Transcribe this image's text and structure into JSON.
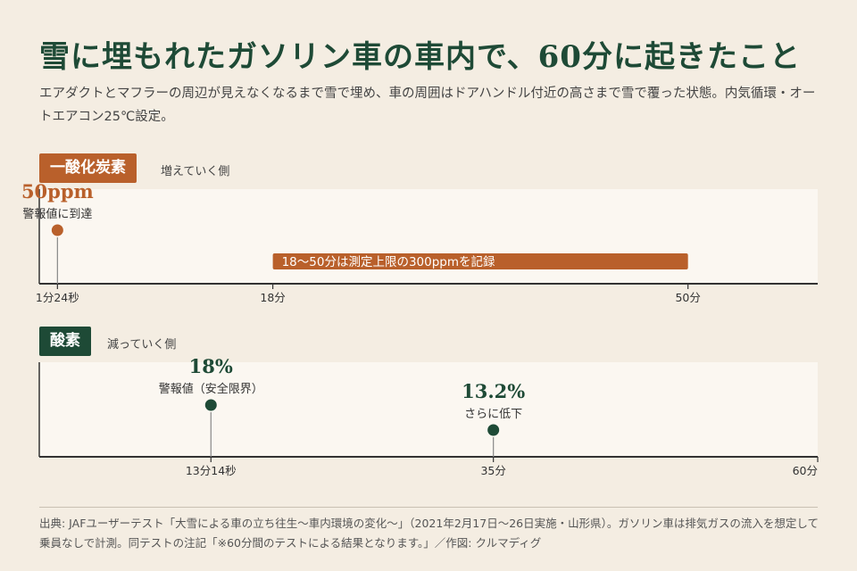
{
  "title": "雪に埋もれたガソリン車の車内で、60分に起きたこと",
  "subtitle": "エアダクトとマフラーの周辺が見えなくなるまで雪で埋め、車の周囲はドアハンドル付近の高さまで雪で覆った状態。内気循環・オートエアコン25℃設定。",
  "colors": {
    "co": "#b9602b",
    "o2": "#1e4a36",
    "band": "#fbf7f1",
    "background": "#f4ede2"
  },
  "chart_data": [
    {
      "type": "timeline",
      "badge": "一酸化炭素",
      "note": "増えていく側",
      "x_unit": "minutes",
      "xlim": [
        0,
        60
      ],
      "ticks": [
        {
          "x": 1.4,
          "label": "1分24秒"
        },
        {
          "x": 18,
          "label": "18分"
        },
        {
          "x": 50,
          "label": "50分"
        }
      ],
      "events": [
        {
          "x": 1.4,
          "value_label": "50ppm",
          "caption": "警報値に到達"
        }
      ],
      "range_bar": {
        "from": 18,
        "to": 50,
        "label": "18〜50分は測定上限の300ppmを記録"
      }
    },
    {
      "type": "timeline",
      "badge": "酸素",
      "note": "減っていく側",
      "x_unit": "minutes",
      "xlim": [
        0,
        60
      ],
      "ticks": [
        {
          "x": 13.23,
          "label": "13分14秒"
        },
        {
          "x": 35,
          "label": "35分"
        },
        {
          "x": 60,
          "label": "60分"
        }
      ],
      "events": [
        {
          "x": 13.23,
          "value_label": "18%",
          "caption": "警報値（安全限界）"
        },
        {
          "x": 35,
          "value_label": "13.2%",
          "caption": "さらに低下"
        }
      ]
    }
  ],
  "footer": "出典: JAFユーザーテスト「大雪による車の立ち往生〜車内環境の変化〜」（2021年2月17日〜26日実施・山形県）。ガソリン車は排気ガスの流入を想定して乗員なしで計測。同テストの注記「※60分間のテストによる結果となります。」／作図: クルマディグ"
}
